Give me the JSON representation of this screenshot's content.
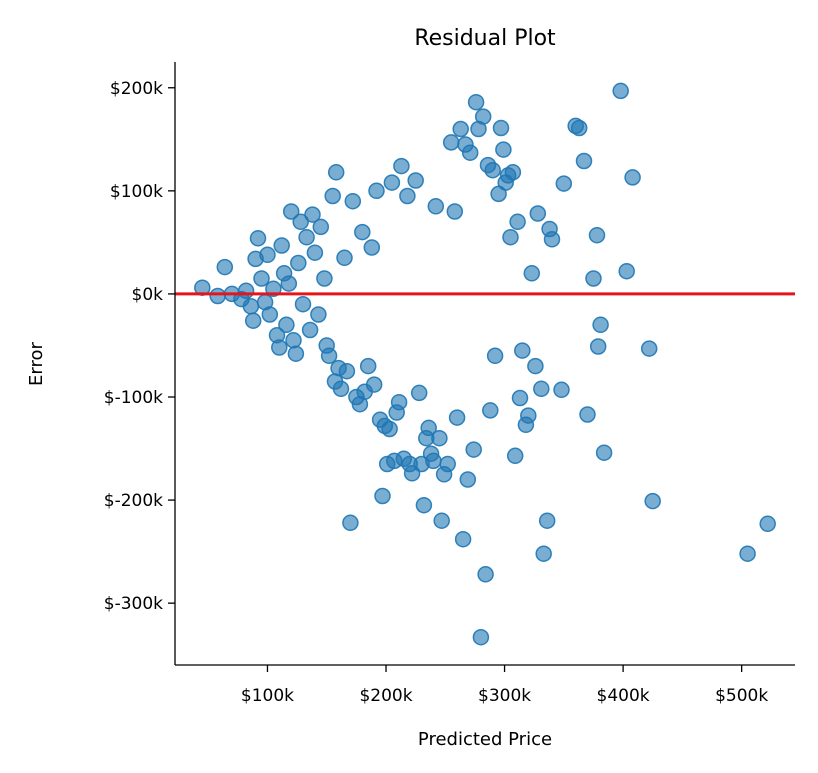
{
  "chart_data": {
    "type": "scatter",
    "title": "Residual Plot",
    "xlabel": "Predicted Price",
    "ylabel": "Error",
    "xlim": [
      22000,
      545000
    ],
    "ylim": [
      -360000,
      225000
    ],
    "xticks": [
      {
        "value": 100000,
        "label": "$100k"
      },
      {
        "value": 200000,
        "label": "$200k"
      },
      {
        "value": 300000,
        "label": "$300k"
      },
      {
        "value": 400000,
        "label": "$400k"
      },
      {
        "value": 500000,
        "label": "$500k"
      }
    ],
    "yticks": [
      {
        "value": 200000,
        "label": "$200k"
      },
      {
        "value": 100000,
        "label": "$100k"
      },
      {
        "value": 0,
        "label": "$0k"
      },
      {
        "value": -100000,
        "label": "$-100k"
      },
      {
        "value": -200000,
        "label": "$-200k"
      },
      {
        "value": -300000,
        "label": "$-300k"
      }
    ],
    "reference_line": {
      "y": 0,
      "color": "#e8141c"
    },
    "point_color": "#1f77b4",
    "point_opacity": 0.6,
    "grid": false,
    "points": [
      [
        45000,
        6000
      ],
      [
        58000,
        -2000
      ],
      [
        64000,
        26000
      ],
      [
        70000,
        0
      ],
      [
        78000,
        -5000
      ],
      [
        82000,
        3000
      ],
      [
        86000,
        -12000
      ],
      [
        88000,
        -26000
      ],
      [
        90000,
        34000
      ],
      [
        92000,
        54000
      ],
      [
        95000,
        15000
      ],
      [
        98000,
        -8000
      ],
      [
        100000,
        38000
      ],
      [
        102000,
        -20000
      ],
      [
        105000,
        5000
      ],
      [
        108000,
        -40000
      ],
      [
        110000,
        -52000
      ],
      [
        112000,
        47000
      ],
      [
        114000,
        20000
      ],
      [
        116000,
        -30000
      ],
      [
        118000,
        10000
      ],
      [
        120000,
        80000
      ],
      [
        122000,
        -45000
      ],
      [
        124000,
        -58000
      ],
      [
        126000,
        30000
      ],
      [
        128000,
        70000
      ],
      [
        130000,
        -10000
      ],
      [
        133000,
        55000
      ],
      [
        136000,
        -35000
      ],
      [
        138000,
        77000
      ],
      [
        140000,
        40000
      ],
      [
        143000,
        -20000
      ],
      [
        145000,
        65000
      ],
      [
        148000,
        15000
      ],
      [
        150000,
        -50000
      ],
      [
        152000,
        -60000
      ],
      [
        155000,
        95000
      ],
      [
        157000,
        -85000
      ],
      [
        158000,
        118000
      ],
      [
        160000,
        -72000
      ],
      [
        162000,
        -92000
      ],
      [
        165000,
        35000
      ],
      [
        167000,
        -75000
      ],
      [
        170000,
        -222000
      ],
      [
        172000,
        90000
      ],
      [
        175000,
        -100000
      ],
      [
        178000,
        -107000
      ],
      [
        180000,
        60000
      ],
      [
        182000,
        -95000
      ],
      [
        185000,
        -70000
      ],
      [
        188000,
        45000
      ],
      [
        190000,
        -88000
      ],
      [
        192000,
        100000
      ],
      [
        195000,
        -122000
      ],
      [
        197000,
        -196000
      ],
      [
        199000,
        -128000
      ],
      [
        201000,
        -165000
      ],
      [
        203000,
        -131000
      ],
      [
        205000,
        108000
      ],
      [
        207000,
        -162000
      ],
      [
        209000,
        -115000
      ],
      [
        211000,
        -105000
      ],
      [
        213000,
        124000
      ],
      [
        215000,
        -160000
      ],
      [
        218000,
        95000
      ],
      [
        220000,
        -165000
      ],
      [
        222000,
        -174000
      ],
      [
        225000,
        110000
      ],
      [
        228000,
        -96000
      ],
      [
        230000,
        -165000
      ],
      [
        232000,
        -205000
      ],
      [
        234000,
        -140000
      ],
      [
        236000,
        -130000
      ],
      [
        238000,
        -155000
      ],
      [
        240000,
        -162000
      ],
      [
        242000,
        85000
      ],
      [
        245000,
        -140000
      ],
      [
        247000,
        -220000
      ],
      [
        249000,
        -175000
      ],
      [
        252000,
        -165000
      ],
      [
        255000,
        147000
      ],
      [
        258000,
        80000
      ],
      [
        260000,
        -120000
      ],
      [
        263000,
        160000
      ],
      [
        265000,
        -238000
      ],
      [
        267000,
        145000
      ],
      [
        269000,
        -180000
      ],
      [
        271000,
        137000
      ],
      [
        274000,
        -151000
      ],
      [
        276000,
        186000
      ],
      [
        278000,
        160000
      ],
      [
        280000,
        -333000
      ],
      [
        282000,
        172000
      ],
      [
        284000,
        -272000
      ],
      [
        286000,
        125000
      ],
      [
        288000,
        -113000
      ],
      [
        290000,
        120000
      ],
      [
        292000,
        -60000
      ],
      [
        295000,
        97000
      ],
      [
        297000,
        161000
      ],
      [
        299000,
        140000
      ],
      [
        301000,
        108000
      ],
      [
        303000,
        115000
      ],
      [
        305000,
        55000
      ],
      [
        307000,
        118000
      ],
      [
        309000,
        -157000
      ],
      [
        311000,
        70000
      ],
      [
        313000,
        -101000
      ],
      [
        315000,
        -55000
      ],
      [
        318000,
        -127000
      ],
      [
        320000,
        -118000
      ],
      [
        323000,
        20000
      ],
      [
        326000,
        -70000
      ],
      [
        328000,
        78000
      ],
      [
        331000,
        -92000
      ],
      [
        333000,
        -252000
      ],
      [
        336000,
        -220000
      ],
      [
        338000,
        63000
      ],
      [
        340000,
        53000
      ],
      [
        348000,
        -93000
      ],
      [
        350000,
        107000
      ],
      [
        360000,
        163000
      ],
      [
        363000,
        161000
      ],
      [
        367000,
        129000
      ],
      [
        370000,
        -117000
      ],
      [
        375000,
        15000
      ],
      [
        378000,
        57000
      ],
      [
        379000,
        -51000
      ],
      [
        381000,
        -30000
      ],
      [
        384000,
        -154000
      ],
      [
        398000,
        197000
      ],
      [
        403000,
        22000
      ],
      [
        408000,
        113000
      ],
      [
        422000,
        -53000
      ],
      [
        425000,
        -201000
      ],
      [
        505000,
        -252000
      ],
      [
        522000,
        -223000
      ]
    ]
  }
}
